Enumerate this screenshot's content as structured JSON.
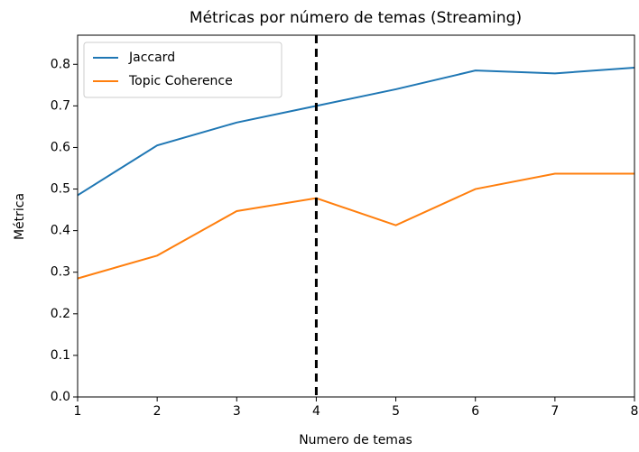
{
  "chart_data": {
    "type": "line",
    "title": "Métricas por número de temas (Streaming)",
    "xlabel": "Numero de temas",
    "ylabel": "Métrica",
    "x": [
      1,
      2,
      3,
      4,
      5,
      6,
      7,
      8
    ],
    "series": [
      {
        "name": "Jaccard",
        "color": "#1f77b4",
        "values": [
          0.485,
          0.605,
          0.66,
          0.7,
          0.74,
          0.785,
          0.778,
          0.792
        ]
      },
      {
        "name": "Topic Coherence",
        "color": "#ff7f0e",
        "values": [
          0.285,
          0.34,
          0.447,
          0.478,
          0.413,
          0.5,
          0.537,
          0.537
        ]
      }
    ],
    "xlim": [
      1,
      8
    ],
    "xticks": [
      1,
      2,
      3,
      4,
      5,
      6,
      7,
      8
    ],
    "ylim": [
      0,
      0.87
    ],
    "yticks": [
      {
        "value": 0,
        "label": "0.0"
      },
      0.1,
      0.2,
      0.3,
      0.4,
      0.5,
      0.6,
      0.7,
      0.8
    ],
    "vline": 4,
    "legend": "upper left",
    "grid": false
  }
}
